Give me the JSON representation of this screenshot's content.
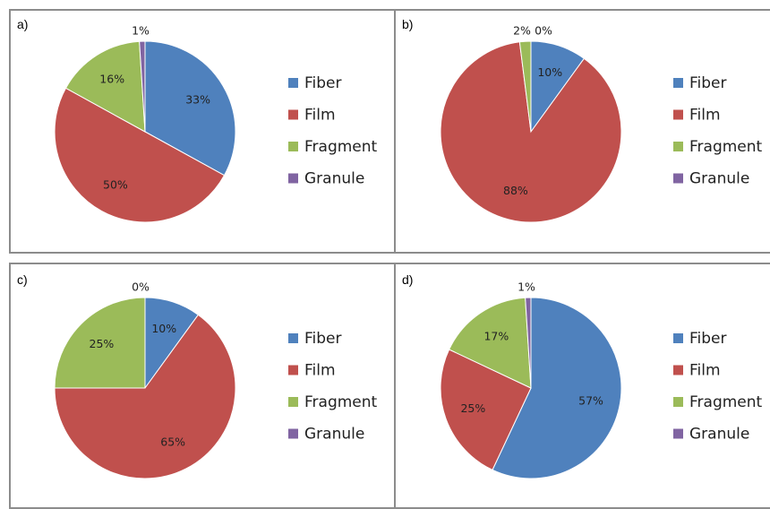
{
  "colors": {
    "Fiber": "#4f81bd",
    "Film": "#c0504d",
    "Fragment": "#9bbb59",
    "Granule": "#8064a2"
  },
  "chart_data": [
    {
      "type": "pie",
      "panel_label": "a)",
      "categories": [
        "Fiber",
        "Film",
        "Fragment",
        "Granule"
      ],
      "values": [
        33,
        50,
        16,
        1
      ],
      "labels": [
        "33%",
        "50%",
        "16%",
        "1%"
      ],
      "legend": [
        "Fiber",
        "Film",
        "Fragment",
        "Granule"
      ],
      "legend_position": "right"
    },
    {
      "type": "pie",
      "panel_label": "b)",
      "categories": [
        "Fiber",
        "Film",
        "Fragment",
        "Granule"
      ],
      "values": [
        10,
        88,
        2,
        0
      ],
      "labels": [
        "10%",
        "88%",
        "2%",
        "0%"
      ],
      "legend": [
        "Fiber",
        "Film",
        "Fragment",
        "Granule"
      ],
      "legend_position": "right"
    },
    {
      "type": "pie",
      "panel_label": "c)",
      "categories": [
        "Fiber",
        "Film",
        "Fragment",
        "Granule"
      ],
      "values": [
        10,
        65,
        25,
        0
      ],
      "labels": [
        "10%",
        "65%",
        "25%",
        "0%"
      ],
      "legend": [
        "Fiber",
        "Film",
        "Fragment",
        "Granule"
      ],
      "legend_position": "right"
    },
    {
      "type": "pie",
      "panel_label": "d)",
      "categories": [
        "Fiber",
        "Film",
        "Fragment",
        "Granule"
      ],
      "values": [
        57,
        25,
        17,
        1
      ],
      "labels": [
        "57%",
        "25%",
        "17%",
        "1%"
      ],
      "legend": [
        "Fiber",
        "Film",
        "Fragment",
        "Granule"
      ],
      "legend_position": "right"
    }
  ]
}
